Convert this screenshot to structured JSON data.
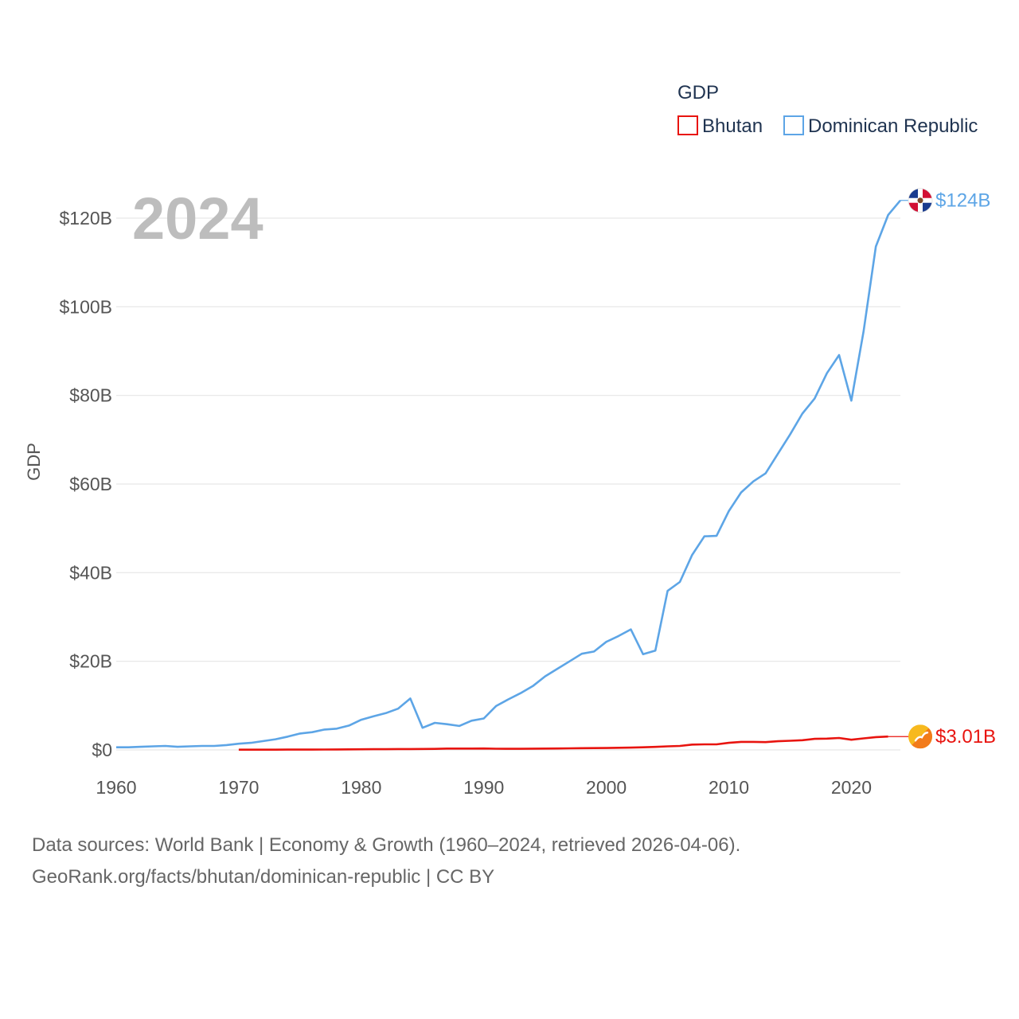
{
  "chart_data": {
    "type": "line",
    "title": "",
    "legend_title": "GDP",
    "xlabel": "",
    "ylabel": "GDP",
    "year_label": "2024",
    "xlim": [
      1960,
      2024
    ],
    "ylim": [
      0,
      120
    ],
    "x_ticks": [
      1960,
      1970,
      1980,
      1990,
      2000,
      2010,
      2020
    ],
    "y_ticks": [
      {
        "value": 0,
        "label": "$0"
      },
      {
        "value": 20,
        "label": "$20B"
      },
      {
        "value": 40,
        "label": "$40B"
      },
      {
        "value": 60,
        "label": "$60B"
      },
      {
        "value": 80,
        "label": "$80B"
      },
      {
        "value": 100,
        "label": "$100B"
      },
      {
        "value": 120,
        "label": "$120B"
      }
    ],
    "units": "billions USD",
    "legend_position": "top-right",
    "grid": true,
    "series": [
      {
        "name": "Bhutan",
        "color": "#e8140f",
        "end_label": "$3.01B",
        "flag_icon": "bhutan-flag-icon",
        "x": [
          1970,
          1971,
          1972,
          1973,
          1974,
          1975,
          1976,
          1977,
          1978,
          1979,
          1980,
          1981,
          1982,
          1983,
          1984,
          1985,
          1986,
          1987,
          1988,
          1989,
          1990,
          1991,
          1992,
          1993,
          1994,
          1995,
          1996,
          1997,
          1998,
          1999,
          2000,
          2001,
          2002,
          2003,
          2004,
          2005,
          2006,
          2007,
          2008,
          2009,
          2010,
          2011,
          2012,
          2013,
          2014,
          2015,
          2016,
          2017,
          2018,
          2019,
          2020,
          2021,
          2022,
          2023
        ],
        "values": [
          0.05,
          0.05,
          0.06,
          0.06,
          0.07,
          0.07,
          0.08,
          0.09,
          0.1,
          0.12,
          0.14,
          0.16,
          0.17,
          0.19,
          0.2,
          0.22,
          0.24,
          0.3,
          0.31,
          0.31,
          0.32,
          0.27,
          0.25,
          0.25,
          0.28,
          0.3,
          0.32,
          0.36,
          0.39,
          0.42,
          0.44,
          0.48,
          0.52,
          0.59,
          0.68,
          0.8,
          0.9,
          1.2,
          1.26,
          1.26,
          1.6,
          1.82,
          1.82,
          1.76,
          1.95,
          2.06,
          2.2,
          2.5,
          2.55,
          2.7,
          2.3,
          2.6,
          2.9,
          3.01
        ]
      },
      {
        "name": "Dominican Republic",
        "color": "#5da5e6",
        "end_label": "$124B",
        "flag_icon": "dominican-republic-flag-icon",
        "x": [
          1960,
          1961,
          1962,
          1963,
          1964,
          1965,
          1966,
          1967,
          1968,
          1969,
          1970,
          1971,
          1972,
          1973,
          1974,
          1975,
          1976,
          1977,
          1978,
          1979,
          1980,
          1981,
          1982,
          1983,
          1984,
          1985,
          1986,
          1987,
          1988,
          1989,
          1990,
          1991,
          1992,
          1993,
          1994,
          1995,
          1996,
          1997,
          1998,
          1999,
          2000,
          2001,
          2002,
          2003,
          2004,
          2005,
          2006,
          2007,
          2008,
          2009,
          2010,
          2011,
          2012,
          2013,
          2014,
          2015,
          2016,
          2017,
          2018,
          2019,
          2020,
          2021,
          2022,
          2023,
          2024
        ],
        "values": [
          0.6,
          0.6,
          0.7,
          0.8,
          0.9,
          0.7,
          0.8,
          0.9,
          0.9,
          1.1,
          1.4,
          1.6,
          2.0,
          2.4,
          3.0,
          3.7,
          4.0,
          4.6,
          4.8,
          5.5,
          6.8,
          7.6,
          8.3,
          9.3,
          11.6,
          5.0,
          6.1,
          5.8,
          5.4,
          6.6,
          7.1,
          9.9,
          11.4,
          12.8,
          14.4,
          16.6,
          18.3,
          20.0,
          21.7,
          22.2,
          24.4,
          25.7,
          27.2,
          21.6,
          22.4,
          35.9,
          37.9,
          44.0,
          48.2,
          48.3,
          53.9,
          58.1,
          60.6,
          62.4,
          66.8,
          71.2,
          75.9,
          79.3,
          85.0,
          89.1,
          78.8,
          94.5,
          113.6,
          120.7,
          124.0
        ]
      }
    ]
  },
  "source": {
    "line1": "Data sources: World Bank | Economy & Growth (1960–2024, retrieved 2026-04-06).",
    "line2": "GeoRank.org/facts/bhutan/dominican-republic | CC BY"
  }
}
